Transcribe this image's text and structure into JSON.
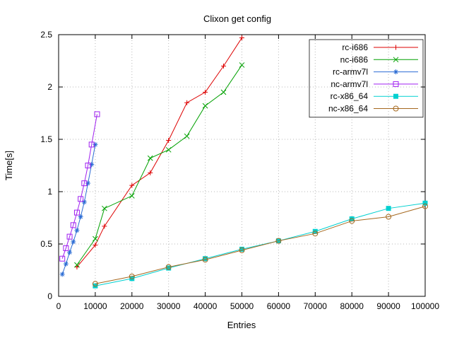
{
  "chart_data": {
    "type": "line",
    "title": "Clixon get config",
    "xlabel": "Entries",
    "ylabel": "Time[s]",
    "xlim": [
      0,
      100000
    ],
    "ylim": [
      0,
      2.5
    ],
    "grid": true,
    "legend_position": "top-right",
    "xticks": {
      "values": [
        0,
        10000,
        20000,
        30000,
        40000,
        50000,
        60000,
        70000,
        80000,
        90000,
        100000
      ],
      "labels": [
        "0",
        "10000",
        "20000",
        "30000",
        "40000",
        "50000",
        "60000",
        "70000",
        "80000",
        "90000",
        "100000"
      ]
    },
    "yticks": {
      "values": [
        0,
        0.5,
        1,
        1.5,
        2,
        2.5
      ],
      "labels": [
        "0",
        "0.5",
        "1",
        "1.5",
        "2",
        "2.5"
      ]
    },
    "series": [
      {
        "name": "rc-i686",
        "color": "#dd0000",
        "marker": "plus",
        "points": [
          [
            5000,
            0.28
          ],
          [
            10000,
            0.49
          ],
          [
            12500,
            0.67
          ],
          [
            20000,
            1.06
          ],
          [
            25000,
            1.18
          ],
          [
            30000,
            1.49
          ],
          [
            35000,
            1.85
          ],
          [
            40000,
            1.95
          ],
          [
            45000,
            2.2
          ],
          [
            50000,
            2.47
          ]
        ]
      },
      {
        "name": "nc-i686",
        "color": "#00a000",
        "marker": "cross",
        "points": [
          [
            5000,
            0.3
          ],
          [
            10000,
            0.55
          ],
          [
            12500,
            0.84
          ],
          [
            20000,
            0.96
          ],
          [
            25000,
            1.32
          ],
          [
            30000,
            1.4
          ],
          [
            35000,
            1.53
          ],
          [
            40000,
            1.82
          ],
          [
            45000,
            1.95
          ],
          [
            50000,
            2.21
          ]
        ]
      },
      {
        "name": "rc-armv7l",
        "color": "#2b6cd4",
        "marker": "asterisk",
        "points": [
          [
            1000,
            0.21
          ],
          [
            2000,
            0.31
          ],
          [
            3000,
            0.42
          ],
          [
            4000,
            0.52
          ],
          [
            5000,
            0.63
          ],
          [
            6000,
            0.76
          ],
          [
            7000,
            0.9
          ],
          [
            8000,
            1.08
          ],
          [
            9000,
            1.26
          ],
          [
            10000,
            1.45
          ]
        ]
      },
      {
        "name": "nc-armv7l",
        "color": "#a020f0",
        "marker": "square-open",
        "points": [
          [
            1000,
            0.36
          ],
          [
            2000,
            0.46
          ],
          [
            3000,
            0.57
          ],
          [
            4000,
            0.68
          ],
          [
            5000,
            0.8
          ],
          [
            6000,
            0.93
          ],
          [
            7000,
            1.08
          ],
          [
            8000,
            1.25
          ],
          [
            9000,
            1.45
          ],
          [
            10500,
            1.74
          ]
        ]
      },
      {
        "name": "rc-x86_64",
        "color": "#00d0d0",
        "marker": "square-filled",
        "points": [
          [
            10000,
            0.1
          ],
          [
            20000,
            0.17
          ],
          [
            30000,
            0.27
          ],
          [
            40000,
            0.36
          ],
          [
            50000,
            0.45
          ],
          [
            60000,
            0.53
          ],
          [
            70000,
            0.62
          ],
          [
            80000,
            0.74
          ],
          [
            90000,
            0.84
          ],
          [
            100000,
            0.89
          ]
        ]
      },
      {
        "name": "nc-x86_64",
        "color": "#a5681e",
        "marker": "circle-open",
        "points": [
          [
            10000,
            0.12
          ],
          [
            20000,
            0.19
          ],
          [
            30000,
            0.28
          ],
          [
            40000,
            0.35
          ],
          [
            50000,
            0.44
          ],
          [
            60000,
            0.53
          ],
          [
            70000,
            0.6
          ],
          [
            80000,
            0.72
          ],
          [
            90000,
            0.76
          ],
          [
            100000,
            0.86
          ]
        ]
      }
    ]
  }
}
